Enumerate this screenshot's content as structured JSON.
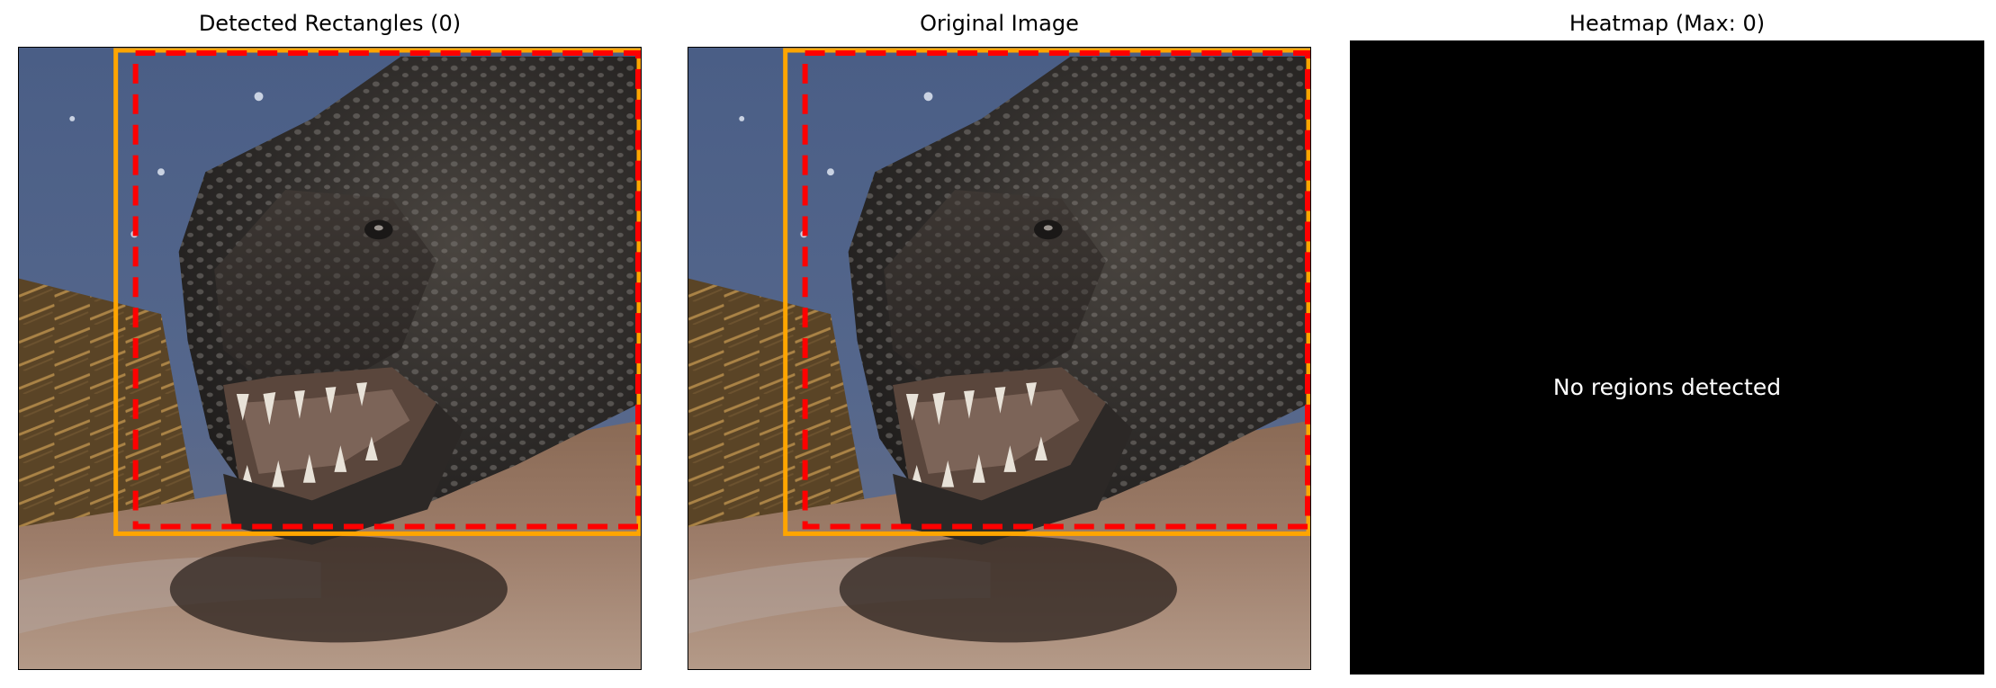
{
  "panels": [
    {
      "title": "Detected Rectangles (0)"
    },
    {
      "title": "Original Image"
    },
    {
      "title": "Heatmap (Max: 0)"
    }
  ],
  "heatmap": {
    "message": "No regions detected"
  },
  "colors": {
    "detection_box": "#ffa500",
    "dashed_box": "#ff0000",
    "heatmap_bg": "#000000"
  },
  "image_subject": "crocodile-photo-icon"
}
